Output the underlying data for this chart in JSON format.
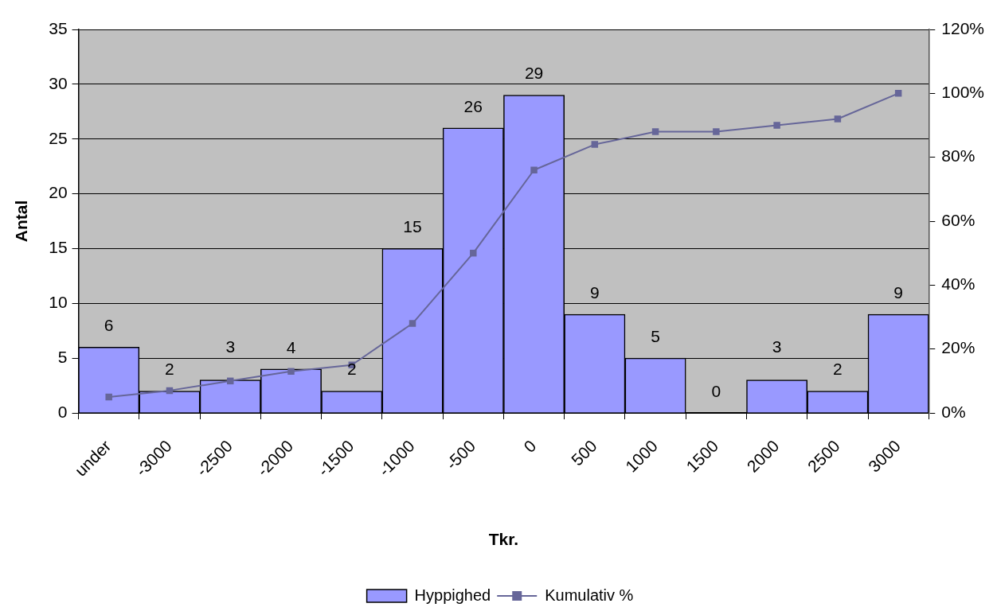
{
  "chart_data": {
    "type": "bar",
    "xlabel": "Tkr.",
    "ylabel": "Antal",
    "categories": [
      "under",
      "-3000",
      "-2500",
      "-2000",
      "-1500",
      "-1000",
      "-500",
      "0",
      "500",
      "1000",
      "1500",
      "2000",
      "2500",
      "3000"
    ],
    "series": [
      {
        "name": "Hyppighed",
        "color": "#9999ff",
        "values": [
          6,
          2,
          3,
          4,
          2,
          15,
          26,
          29,
          9,
          5,
          0,
          3,
          2,
          9
        ],
        "value_labels": [
          "6",
          "2",
          "3",
          "4",
          "2",
          "15",
          "26",
          "29",
          "9",
          "5",
          "0",
          "3",
          "2",
          "9"
        ]
      },
      {
        "name": "Kumulativ %",
        "type": "line",
        "axis": "y2",
        "color": "#666699",
        "values": [
          5,
          7,
          10,
          13,
          15,
          28,
          50,
          76,
          84,
          88,
          88,
          90,
          92,
          100
        ]
      }
    ],
    "ylim": [
      0,
      35
    ],
    "yticks": [
      0,
      5,
      10,
      15,
      20,
      25,
      30,
      35
    ],
    "y2lim": [
      0,
      120
    ],
    "y2ticks": [
      {
        "value": 0,
        "label": "0%"
      },
      {
        "value": 20,
        "label": "20%"
      },
      {
        "value": 40,
        "label": "40%"
      },
      {
        "value": 60,
        "label": "60%"
      },
      {
        "value": 80,
        "label": "80%"
      },
      {
        "value": 100,
        "label": "100%"
      },
      {
        "value": 120,
        "label": "120%"
      }
    ],
    "grid": "y",
    "legend": "bottom",
    "marker": "square",
    "line_style": "solid"
  }
}
